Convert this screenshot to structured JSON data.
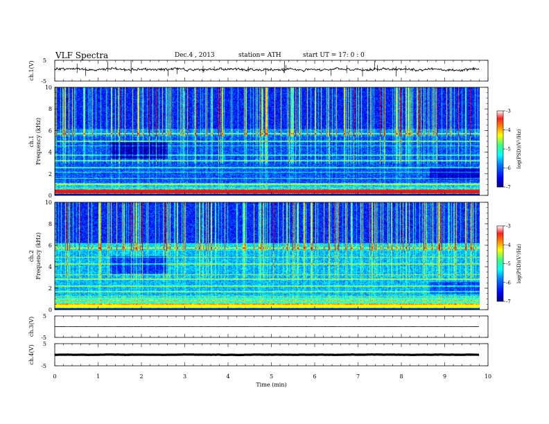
{
  "header": {
    "title": "VLF  Spectra",
    "date": "Dec.4   , 2013",
    "station": "station= ATH",
    "start": "start  UT  =    17: 0   : 0"
  },
  "chart_data": [
    {
      "type": "line",
      "panel": "ch1-waveform",
      "ylabel": "ch.1(V)",
      "ylim": [
        -5,
        5
      ],
      "yticks": [
        "5",
        "-5"
      ],
      "x_range_min": [
        0,
        9.8
      ],
      "baseline_level_v": 0.6,
      "trace_color": "#000000"
    },
    {
      "type": "heatmap",
      "panel": "ch1-spectrogram",
      "ylabel": "ch.1\nFrequency  (kHz)",
      "ylim": [
        0,
        10
      ],
      "yticks": [
        "0",
        "2",
        "4",
        "6",
        "8",
        "10"
      ],
      "x_range_min": [
        0,
        9.8
      ],
      "colorbar": {
        "label": "log(PSD)(V²/Hz)",
        "range": [
          -7,
          -3
        ],
        "ticks": [
          "-3",
          "-4",
          "-5",
          "-6",
          "-7"
        ]
      }
    },
    {
      "type": "heatmap",
      "panel": "ch2-spectrogram",
      "ylabel": "ch.2\nFrequency  (kHz)",
      "ylim": [
        0,
        10
      ],
      "yticks": [
        "0",
        "2",
        "4",
        "6",
        "8",
        "10"
      ],
      "x_range_min": [
        0,
        9.8
      ],
      "colorbar": {
        "label": "log(PSD)(V²/Hz)",
        "range": [
          -7,
          -3
        ],
        "ticks": [
          "-3",
          "-4",
          "-5",
          "-6",
          "-7"
        ]
      }
    },
    {
      "type": "line",
      "panel": "ch3-waveform",
      "ylabel": "ch.3(V)",
      "ylim": [
        -5,
        5
      ],
      "yticks": [
        "5",
        "-5"
      ],
      "x_range_min": [
        0,
        9.8
      ],
      "baseline_level_v": 0.0
    },
    {
      "type": "line",
      "panel": "ch4-waveform",
      "ylabel": "ch.4(V)",
      "ylim": [
        -5,
        5
      ],
      "yticks": [
        "5",
        "-5"
      ],
      "x_range_min": [
        0,
        9.8
      ],
      "baseline_level_v": 0.0
    }
  ],
  "xaxis": {
    "label": "Time  (min)",
    "ticks": [
      "0",
      "1",
      "2",
      "3",
      "4",
      "5",
      "6",
      "7",
      "8",
      "9",
      "10"
    ],
    "xlim": [
      0,
      10
    ]
  },
  "colors": {
    "jet": [
      "#00008f",
      "#0000ff",
      "#0080ff",
      "#00ffff",
      "#80ff80",
      "#ffff00",
      "#ff8000",
      "#ff0000",
      "#ffffff"
    ]
  }
}
